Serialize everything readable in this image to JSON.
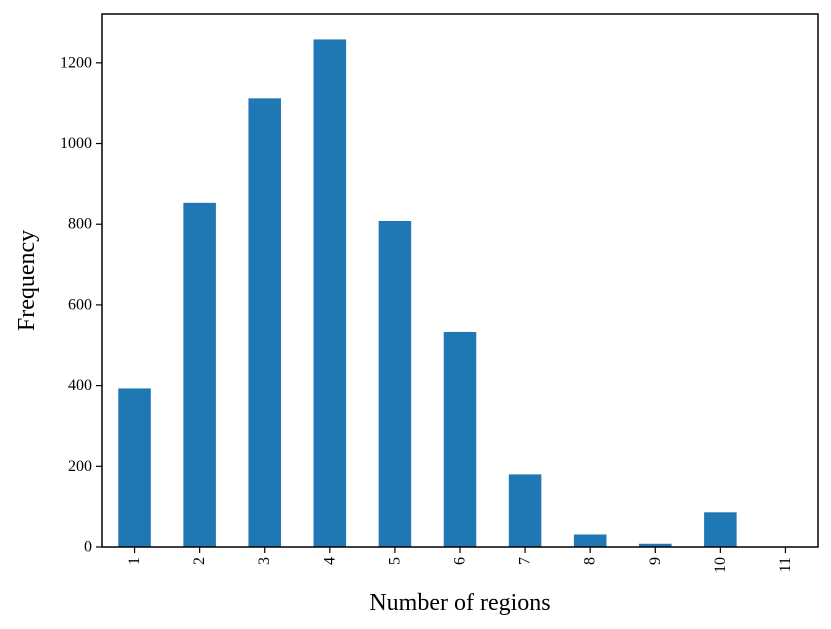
{
  "chart_data": {
    "type": "bar",
    "title": "",
    "xlabel": "Number of regions",
    "ylabel": "Frequency",
    "categories": [
      "1",
      "2",
      "3",
      "4",
      "5",
      "6",
      "7",
      "8",
      "9",
      "10",
      "11"
    ],
    "values": [
      393,
      853,
      1112,
      1258,
      808,
      533,
      180,
      31,
      8,
      86,
      1
    ],
    "ylim": [
      0,
      1321
    ],
    "yticks": [
      0,
      200,
      400,
      600,
      800,
      1000,
      1200
    ],
    "bar_color": "#1f77b4",
    "grid": false,
    "legend": "none",
    "x_tick_rotation": "vertical"
  }
}
